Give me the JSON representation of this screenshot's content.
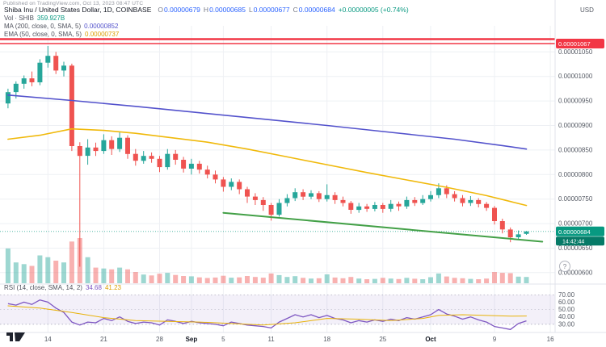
{
  "meta": {
    "attribution": "Published on TradingView.com, Oct 13, 2023 08:47 UTC"
  },
  "legend": {
    "symbol": "Shiba Inu / United States Dollar, 1D, COINBASE",
    "ohlc": {
      "o_label": "O",
      "o": "0.00000679",
      "h_label": "H",
      "h": "0.00000685",
      "l_label": "L",
      "l": "0.00000677",
      "c_label": "C",
      "c": "0.00000684",
      "change": "+0.00000005 (+0.74%)"
    },
    "volume": {
      "label": "Vol · SHIB",
      "value": "359.927B"
    },
    "ma200": {
      "label": "MA (200, close, 0, SMA, 5)",
      "value": "0.00000852"
    },
    "ema50": {
      "label": "EMA (50, close, 0, SMA, 5)",
      "value": "0.00000737"
    }
  },
  "rsi_legend": {
    "label": "RSI (14, close, SMA, 14, 2)",
    "value": "34.68",
    "ma_value": "41.23"
  },
  "axis": {
    "currency_label": "USD",
    "price_ticks": [
      1050,
      1000,
      950,
      900,
      850,
      800,
      750,
      700,
      650,
      600
    ],
    "rsi_ticks": [
      70,
      60,
      50,
      40,
      30
    ],
    "time_labels": [
      {
        "t": "14",
        "day": 5
      },
      {
        "t": "21",
        "day": 12
      },
      {
        "t": "28",
        "day": 19
      },
      {
        "t": "Sep",
        "day": 23,
        "major": true
      },
      {
        "t": "5",
        "day": 27
      },
      {
        "t": "11",
        "day": 33
      },
      {
        "t": "18",
        "day": 40
      },
      {
        "t": "25",
        "day": 47
      },
      {
        "t": "Oct",
        "day": 53,
        "major": true
      },
      {
        "t": "9",
        "day": 61
      },
      {
        "t": "16",
        "day": 68
      }
    ]
  },
  "badges": {
    "resistance": "0.00001067",
    "last_price": "0.00000684",
    "countdown": "14:42:44",
    "help": "?"
  },
  "colors": {
    "up": "#26a69a",
    "down": "#ef5350",
    "ma200": "#5352cc",
    "ema50": "#f0b90b",
    "rsi": "#7e57c2",
    "rsi_ma": "#e8b208",
    "trendline": "#43a047",
    "level": "#f23645",
    "last_price": "#089981",
    "countdown_bg": "#067a67",
    "band_fill": "rgba(126,87,194,0.09)"
  },
  "chart_data": {
    "type": "candlestick",
    "title": "Shiba Inu / United States Dollar, 1D, COINBASE",
    "price_unit": "1e-8 USD",
    "interval": "1D",
    "ylim": [
      580,
      1090
    ],
    "last_price": 684,
    "candles": [
      [
        945,
        975,
        935,
        968
      ],
      [
        968,
        990,
        955,
        985
      ],
      [
        985,
        1002,
        975,
        996
      ],
      [
        996,
        1010,
        980,
        988
      ],
      [
        988,
        1035,
        982,
        1028
      ],
      [
        1028,
        1062,
        1018,
        1042
      ],
      [
        1042,
        1050,
        1005,
        1012
      ],
      [
        1012,
        1030,
        1000,
        1022
      ],
      [
        1022,
        1026,
        848,
        858
      ],
      [
        858,
        866,
        612,
        838
      ],
      [
        838,
        872,
        820,
        855
      ],
      [
        855,
        865,
        838,
        848
      ],
      [
        848,
        882,
        842,
        870
      ],
      [
        870,
        878,
        840,
        852
      ],
      [
        852,
        888,
        846,
        875
      ],
      [
        875,
        880,
        832,
        842
      ],
      [
        842,
        852,
        818,
        828
      ],
      [
        828,
        848,
        822,
        838
      ],
      [
        838,
        845,
        824,
        832
      ],
      [
        832,
        838,
        805,
        815
      ],
      [
        815,
        852,
        810,
        842
      ],
      [
        842,
        850,
        820,
        830
      ],
      [
        830,
        836,
        804,
        812
      ],
      [
        812,
        832,
        800,
        822
      ],
      [
        822,
        828,
        802,
        810
      ],
      [
        810,
        818,
        792,
        800
      ],
      [
        800,
        808,
        782,
        790
      ],
      [
        790,
        795,
        765,
        775
      ],
      [
        775,
        792,
        768,
        785
      ],
      [
        785,
        790,
        760,
        770
      ],
      [
        770,
        775,
        742,
        755
      ],
      [
        755,
        762,
        738,
        748
      ],
      [
        748,
        754,
        726,
        738
      ],
      [
        738,
        742,
        706,
        718
      ],
      [
        718,
        750,
        714,
        742
      ],
      [
        742,
        760,
        735,
        752
      ],
      [
        752,
        772,
        746,
        764
      ],
      [
        764,
        770,
        748,
        755
      ],
      [
        755,
        768,
        750,
        762
      ],
      [
        762,
        766,
        744,
        750
      ],
      [
        750,
        780,
        745,
        758
      ],
      [
        758,
        764,
        740,
        748
      ],
      [
        748,
        755,
        735,
        742
      ],
      [
        742,
        746,
        720,
        728
      ],
      [
        728,
        742,
        722,
        735
      ],
      [
        735,
        740,
        724,
        730
      ],
      [
        730,
        744,
        725,
        738
      ],
      [
        738,
        742,
        722,
        730
      ],
      [
        730,
        748,
        724,
        740
      ],
      [
        740,
        745,
        726,
        735
      ],
      [
        735,
        755,
        730,
        748
      ],
      [
        748,
        754,
        736,
        742
      ],
      [
        742,
        758,
        738,
        750
      ],
      [
        750,
        766,
        745,
        758
      ],
      [
        758,
        782,
        752,
        772
      ],
      [
        772,
        778,
        752,
        760
      ],
      [
        760,
        766,
        745,
        752
      ],
      [
        752,
        758,
        735,
        742
      ],
      [
        742,
        756,
        736,
        748
      ],
      [
        748,
        752,
        733,
        740
      ],
      [
        740,
        744,
        726,
        732
      ],
      [
        732,
        736,
        698,
        705
      ],
      [
        705,
        710,
        680,
        688
      ],
      [
        688,
        692,
        662,
        672
      ],
      [
        672,
        686,
        668,
        678
      ],
      [
        679,
        685,
        677,
        684
      ]
    ],
    "volume": [
      2000,
      1200,
      1100,
      1000,
      1600,
      1500,
      1300,
      1200,
      2400,
      2600,
      1500,
      900,
      850,
      800,
      900,
      800,
      650,
      500,
      450,
      550,
      600,
      480,
      420,
      400,
      340,
      300,
      330,
      430,
      320,
      340,
      420,
      360,
      320,
      560,
      470,
      360,
      410,
      310,
      270,
      290,
      510,
      330,
      290,
      360,
      270,
      230,
      250,
      310,
      270,
      240,
      310,
      260,
      230,
      350,
      560,
      390,
      310,
      290,
      250,
      230,
      270,
      650,
      600,
      580,
      380,
      360
    ],
    "rsi": [
      58,
      56,
      60,
      57,
      63,
      60,
      52,
      46,
      33,
      29,
      33,
      32,
      38,
      35,
      40,
      34,
      31,
      33,
      32,
      29,
      36,
      34,
      31,
      34,
      32,
      31,
      30,
      28,
      33,
      31,
      29,
      28,
      27,
      25,
      33,
      38,
      43,
      40,
      43,
      39,
      42,
      38,
      36,
      32,
      35,
      33,
      36,
      34,
      37,
      35,
      39,
      37,
      40,
      43,
      50,
      44,
      41,
      37,
      40,
      36,
      33,
      27,
      25,
      23,
      31,
      34.68
    ],
    "rsi_ma_points": [
      [
        0,
        55
      ],
      [
        4,
        52
      ],
      [
        8,
        46
      ],
      [
        12,
        39
      ],
      [
        16,
        35
      ],
      [
        20,
        34
      ],
      [
        24,
        33
      ],
      [
        28,
        31
      ],
      [
        32,
        29
      ],
      [
        36,
        32
      ],
      [
        40,
        38
      ],
      [
        44,
        37
      ],
      [
        48,
        35
      ],
      [
        52,
        38
      ],
      [
        54,
        42
      ],
      [
        57,
        43
      ],
      [
        60,
        42
      ],
      [
        63,
        41
      ],
      [
        65,
        41.2
      ]
    ],
    "ma200_points": [
      [
        0,
        962
      ],
      [
        8,
        951
      ],
      [
        16,
        939
      ],
      [
        24,
        926
      ],
      [
        32,
        913
      ],
      [
        40,
        900
      ],
      [
        48,
        886
      ],
      [
        56,
        872
      ],
      [
        62,
        859
      ],
      [
        65,
        852
      ]
    ],
    "ema50_points": [
      [
        0,
        872
      ],
      [
        4,
        880
      ],
      [
        8,
        893
      ],
      [
        12,
        890
      ],
      [
        16,
        884
      ],
      [
        20,
        876
      ],
      [
        25,
        866
      ],
      [
        30,
        852
      ],
      [
        35,
        836
      ],
      [
        40,
        820
      ],
      [
        45,
        804
      ],
      [
        50,
        789
      ],
      [
        55,
        774
      ],
      [
        60,
        757
      ],
      [
        63,
        745
      ],
      [
        65,
        737
      ]
    ],
    "red_levels": [
      {
        "price": 1076,
        "width": 2.5
      },
      {
        "price": 1067,
        "width": 1.5,
        "label": true
      }
    ],
    "trendline": {
      "from": [
        27,
        722
      ],
      "to": [
        67,
        663
      ]
    },
    "rsi_band": [
      30,
      70
    ],
    "rsi_mid": 50
  }
}
